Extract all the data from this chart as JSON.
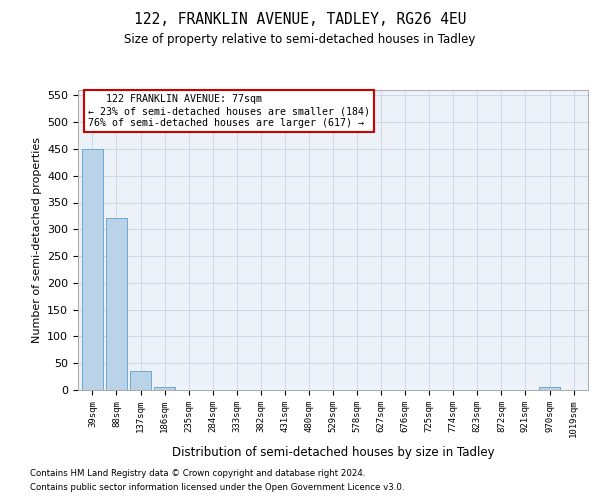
{
  "title": "122, FRANKLIN AVENUE, TADLEY, RG26 4EU",
  "subtitle": "Size of property relative to semi-detached houses in Tadley",
  "xlabel": "Distribution of semi-detached houses by size in Tadley",
  "ylabel": "Number of semi-detached properties",
  "footnote1": "Contains HM Land Registry data © Crown copyright and database right 2024.",
  "footnote2": "Contains public sector information licensed under the Open Government Licence v3.0.",
  "annotation_line1": "   122 FRANKLIN AVENUE: 77sqm",
  "annotation_line2": "← 23% of semi-detached houses are smaller (184)",
  "annotation_line3": "76% of semi-detached houses are larger (617) →",
  "bins": [
    "39sqm",
    "88sqm",
    "137sqm",
    "186sqm",
    "235sqm",
    "284sqm",
    "333sqm",
    "382sqm",
    "431sqm",
    "480sqm",
    "529sqm",
    "578sqm",
    "627sqm",
    "676sqm",
    "725sqm",
    "774sqm",
    "823sqm",
    "872sqm",
    "921sqm",
    "970sqm",
    "1019sqm"
  ],
  "values": [
    450,
    322,
    35,
    5,
    0,
    0,
    0,
    0,
    0,
    0,
    0,
    0,
    0,
    0,
    0,
    0,
    0,
    0,
    0,
    5,
    0
  ],
  "bar_color": "#bad3e8",
  "bar_edge_color": "#6aaad4",
  "grid_color": "#ccd8e8",
  "background_color": "#edf2f9",
  "annotation_box_color": "#cc0000",
  "ylim": [
    0,
    560
  ],
  "yticks": [
    0,
    50,
    100,
    150,
    200,
    250,
    300,
    350,
    400,
    450,
    500,
    550
  ]
}
